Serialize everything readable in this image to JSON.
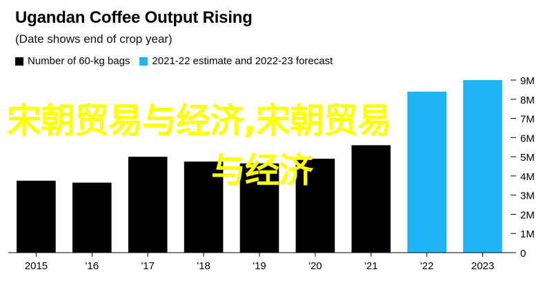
{
  "title": "Ugandan Coffee Output Rising",
  "subtitle": "(Date shows end of crop year)",
  "legend": [
    {
      "label": "Number of 60-kg bags",
      "color": "#000000"
    },
    {
      "label": "2021-22 estimate and 2022-23 forecast",
      "color": "#1eb4f5"
    }
  ],
  "watermark": {
    "line1": "宋朝贸易与经济,宋朝贸易",
    "line2": "与经济"
  },
  "chart_data": {
    "type": "bar",
    "categories": [
      "2015",
      "'16",
      "'17",
      "'18",
      "'19",
      "'20",
      "'21",
      "'22",
      "2023"
    ],
    "series": [
      {
        "name": "Number of 60-kg bags",
        "values": [
          3.75,
          3.65,
          5.0,
          4.75,
          4.65,
          4.9,
          5.6,
          null,
          null
        ],
        "color": "#000000"
      },
      {
        "name": "2021-22 estimate and 2022-23 forecast",
        "values": [
          null,
          null,
          null,
          null,
          null,
          null,
          null,
          8.4,
          9.0
        ],
        "color": "#1eb4f5"
      }
    ],
    "ylim": [
      0,
      9
    ],
    "yticks": [
      0,
      1,
      2,
      3,
      4,
      5,
      6,
      7,
      8,
      9
    ],
    "ytick_labels": [
      "0",
      "1M",
      "2M",
      "3M",
      "4M",
      "5M",
      "6M",
      "7M",
      "8M",
      "9M"
    ],
    "yaxis_side": "right",
    "grid": false
  }
}
